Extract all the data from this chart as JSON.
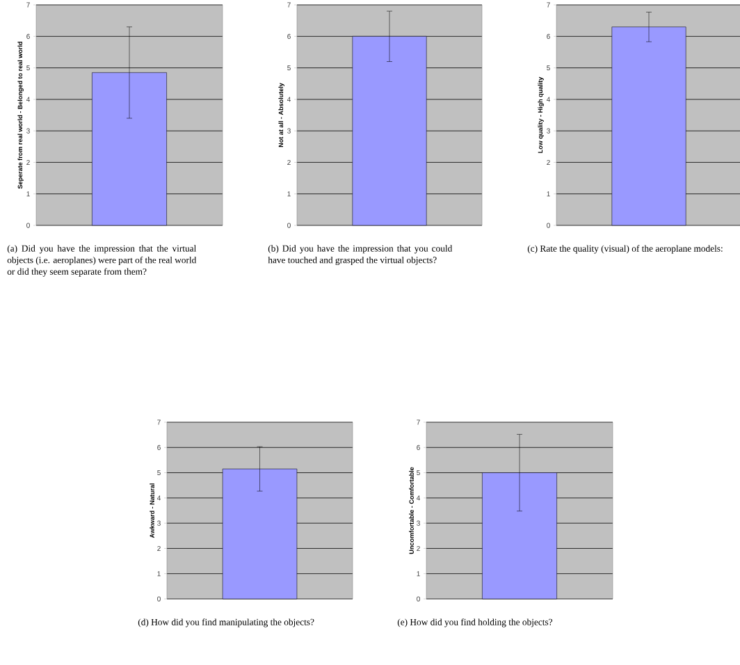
{
  "chart_data": [
    {
      "type": "bar",
      "categories": [
        null
      ],
      "values": [
        4.85
      ],
      "errors": [
        1.45
      ],
      "color": "#9999ff",
      "ylabel": "Seperate from real world - Belonged to real world",
      "ylim": [
        0,
        7
      ],
      "yticks": [
        0,
        1,
        2,
        3,
        4,
        5,
        6,
        7
      ],
      "grid": "y",
      "annotations": [
        "(a) Did you have the impression that the virtual objects (i.e. aeroplanes) were part of the real world or did they seem separate from them?"
      ]
    },
    {
      "type": "bar",
      "categories": [
        null
      ],
      "values": [
        6.0
      ],
      "errors": [
        0.8
      ],
      "color": "#9999ff",
      "ylabel": "Not at all - Absolutely",
      "ylim": [
        0,
        7
      ],
      "yticks": [
        0,
        1,
        2,
        3,
        4,
        5,
        6,
        7
      ],
      "grid": "y",
      "annotations": [
        "(b) Did you have the impression that you could have touched and grasped the virtual objects?"
      ]
    },
    {
      "type": "bar",
      "categories": [
        null
      ],
      "values": [
        6.3
      ],
      "errors": [
        0.47
      ],
      "color": "#9999ff",
      "ylabel": "Low quality - High quality",
      "ylim": [
        0,
        7
      ],
      "yticks": [
        0,
        1,
        2,
        3,
        4,
        5,
        6,
        7
      ],
      "grid": "y",
      "annotations": [
        "(c) Rate the quality (visual) of the aeroplane models:"
      ]
    },
    {
      "type": "bar",
      "categories": [
        null
      ],
      "values": [
        5.15
      ],
      "errors": [
        0.88
      ],
      "color": "#9999ff",
      "ylabel": "Awkward - Natural",
      "ylim": [
        0,
        7
      ],
      "yticks": [
        0,
        1,
        2,
        3,
        4,
        5,
        6,
        7
      ],
      "grid": "y",
      "annotations": [
        "(d) How did you find manipulating the objects?"
      ]
    },
    {
      "type": "bar",
      "categories": [
        null
      ],
      "values": [
        5.0
      ],
      "errors": [
        1.52
      ],
      "color": "#9999ff",
      "ylabel": "Uncomfortable - Comfortable",
      "ylim": [
        0,
        7
      ],
      "yticks": [
        0,
        1,
        2,
        3,
        4,
        5,
        6,
        7
      ],
      "grid": "y",
      "annotations": [
        "(e) How did you find holding the objects?"
      ]
    }
  ]
}
